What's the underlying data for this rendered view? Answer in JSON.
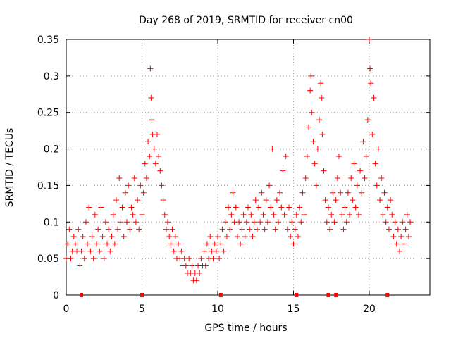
{
  "chart_data": {
    "type": "scatter",
    "title": "Day 268 of 2019, SRMTID for receiver cn00",
    "xlabel": "GPS time / hours",
    "ylabel": "SRMTID / TECUs",
    "xlim": [
      0,
      24
    ],
    "ylim": [
      0,
      0.35
    ],
    "xticks": [
      0,
      5,
      10,
      15,
      20
    ],
    "xtick_labels": [
      "0",
      "5",
      "10",
      "15",
      "20"
    ],
    "yticks": [
      0,
      0.05,
      0.1,
      0.15,
      0.2,
      0.25,
      0.3,
      0.35
    ],
    "ytick_labels": [
      "0",
      "0.05",
      "0.1",
      "0.15",
      "0.2",
      "0.25",
      "0.3",
      "0.35"
    ],
    "grid": true,
    "color": "#ff0000",
    "marker": "plus",
    "series": [
      {
        "name": "SRMTID",
        "points": [
          [
            0.0,
            0.05
          ],
          [
            0.1,
            0.07
          ],
          [
            0.2,
            0.09
          ],
          [
            0.3,
            0.05
          ],
          [
            0.4,
            0.06
          ],
          [
            0.5,
            0.08
          ],
          [
            0.6,
            0.07
          ],
          [
            0.7,
            0.06
          ],
          [
            0.8,
            0.09
          ],
          [
            0.9,
            0.04
          ],
          [
            1.0,
            0.06
          ],
          [
            1.1,
            0.08
          ],
          [
            1.2,
            0.05
          ],
          [
            1.3,
            0.1
          ],
          [
            1.4,
            0.07
          ],
          [
            1.5,
            0.12
          ],
          [
            1.6,
            0.06
          ],
          [
            1.7,
            0.08
          ],
          [
            1.8,
            0.05
          ],
          [
            1.9,
            0.11
          ],
          [
            2.0,
            0.07
          ],
          [
            2.1,
            0.09
          ],
          [
            2.2,
            0.06
          ],
          [
            2.3,
            0.12
          ],
          [
            2.4,
            0.08
          ],
          [
            2.5,
            0.05
          ],
          [
            2.6,
            0.1
          ],
          [
            2.7,
            0.07
          ],
          [
            2.8,
            0.09
          ],
          [
            2.9,
            0.06
          ],
          [
            3.0,
            0.08
          ],
          [
            3.1,
            0.11
          ],
          [
            3.2,
            0.07
          ],
          [
            3.3,
            0.13
          ],
          [
            3.4,
            0.09
          ],
          [
            3.5,
            0.16
          ],
          [
            3.6,
            0.1
          ],
          [
            3.7,
            0.12
          ],
          [
            3.8,
            0.08
          ],
          [
            3.9,
            0.14
          ],
          [
            4.0,
            0.1
          ],
          [
            4.1,
            0.15
          ],
          [
            4.2,
            0.09
          ],
          [
            4.3,
            0.12
          ],
          [
            4.4,
            0.11
          ],
          [
            4.5,
            0.16
          ],
          [
            4.6,
            0.1
          ],
          [
            4.7,
            0.13
          ],
          [
            4.8,
            0.09
          ],
          [
            4.9,
            0.15
          ],
          [
            5.0,
            0.11
          ],
          [
            5.1,
            0.14
          ],
          [
            5.2,
            0.18
          ],
          [
            5.3,
            0.16
          ],
          [
            5.4,
            0.21
          ],
          [
            5.5,
            0.19
          ],
          [
            5.55,
            0.31
          ],
          [
            5.6,
            0.27
          ],
          [
            5.65,
            0.24
          ],
          [
            5.7,
            0.22
          ],
          [
            5.8,
            0.2
          ],
          [
            5.9,
            0.18
          ],
          [
            6.0,
            0.22
          ],
          [
            6.1,
            0.19
          ],
          [
            6.2,
            0.17
          ],
          [
            6.3,
            0.15
          ],
          [
            6.4,
            0.13
          ],
          [
            6.5,
            0.11
          ],
          [
            6.6,
            0.09
          ],
          [
            6.7,
            0.1
          ],
          [
            6.8,
            0.08
          ],
          [
            6.9,
            0.07
          ],
          [
            7.0,
            0.09
          ],
          [
            7.1,
            0.06
          ],
          [
            7.2,
            0.08
          ],
          [
            7.3,
            0.05
          ],
          [
            7.4,
            0.07
          ],
          [
            7.5,
            0.05
          ],
          [
            7.6,
            0.06
          ],
          [
            7.7,
            0.04
          ],
          [
            7.8,
            0.05
          ],
          [
            7.9,
            0.04
          ],
          [
            8.0,
            0.03
          ],
          [
            8.1,
            0.05
          ],
          [
            8.2,
            0.03
          ],
          [
            8.3,
            0.04
          ],
          [
            8.4,
            0.02
          ],
          [
            8.5,
            0.03
          ],
          [
            8.6,
            0.02
          ],
          [
            8.7,
            0.04
          ],
          [
            8.8,
            0.03
          ],
          [
            8.9,
            0.05
          ],
          [
            9.0,
            0.04
          ],
          [
            9.1,
            0.06
          ],
          [
            9.2,
            0.04
          ],
          [
            9.3,
            0.07
          ],
          [
            9.4,
            0.05
          ],
          [
            9.5,
            0.08
          ],
          [
            9.6,
            0.06
          ],
          [
            9.7,
            0.05
          ],
          [
            9.8,
            0.07
          ],
          [
            9.9,
            0.06
          ],
          [
            10.0,
            0.08
          ],
          [
            10.1,
            0.05
          ],
          [
            10.2,
            0.07
          ],
          [
            10.3,
            0.09
          ],
          [
            10.4,
            0.06
          ],
          [
            10.5,
            0.1
          ],
          [
            10.6,
            0.08
          ],
          [
            10.7,
            0.12
          ],
          [
            10.8,
            0.09
          ],
          [
            10.9,
            0.11
          ],
          [
            11.0,
            0.14
          ],
          [
            11.1,
            0.1
          ],
          [
            11.2,
            0.12
          ],
          [
            11.3,
            0.08
          ],
          [
            11.4,
            0.1
          ],
          [
            11.5,
            0.07
          ],
          [
            11.6,
            0.09
          ],
          [
            11.7,
            0.11
          ],
          [
            11.8,
            0.08
          ],
          [
            11.9,
            0.1
          ],
          [
            12.0,
            0.12
          ],
          [
            12.1,
            0.09
          ],
          [
            12.2,
            0.11
          ],
          [
            12.3,
            0.08
          ],
          [
            12.4,
            0.1
          ],
          [
            12.5,
            0.13
          ],
          [
            12.6,
            0.09
          ],
          [
            12.7,
            0.12
          ],
          [
            12.8,
            0.1
          ],
          [
            12.9,
            0.14
          ],
          [
            13.0,
            0.11
          ],
          [
            13.1,
            0.09
          ],
          [
            13.2,
            0.13
          ],
          [
            13.3,
            0.1
          ],
          [
            13.4,
            0.15
          ],
          [
            13.5,
            0.12
          ],
          [
            13.6,
            0.2
          ],
          [
            13.7,
            0.11
          ],
          [
            13.8,
            0.09
          ],
          [
            13.9,
            0.13
          ],
          [
            14.0,
            0.1
          ],
          [
            14.1,
            0.14
          ],
          [
            14.2,
            0.12
          ],
          [
            14.3,
            0.17
          ],
          [
            14.4,
            0.11
          ],
          [
            14.5,
            0.19
          ],
          [
            14.6,
            0.09
          ],
          [
            14.7,
            0.12
          ],
          [
            14.8,
            0.08
          ],
          [
            14.9,
            0.1
          ],
          [
            15.0,
            0.07
          ],
          [
            15.1,
            0.09
          ],
          [
            15.2,
            0.11
          ],
          [
            15.3,
            0.08
          ],
          [
            15.4,
            0.12
          ],
          [
            15.5,
            0.1
          ],
          [
            15.6,
            0.14
          ],
          [
            15.7,
            0.11
          ],
          [
            15.8,
            0.16
          ],
          [
            15.9,
            0.19
          ],
          [
            16.0,
            0.23
          ],
          [
            16.1,
            0.28
          ],
          [
            16.15,
            0.3
          ],
          [
            16.2,
            0.25
          ],
          [
            16.3,
            0.21
          ],
          [
            16.4,
            0.18
          ],
          [
            16.5,
            0.15
          ],
          [
            16.6,
            0.2
          ],
          [
            16.7,
            0.24
          ],
          [
            16.8,
            0.29
          ],
          [
            16.85,
            0.27
          ],
          [
            16.9,
            0.22
          ],
          [
            17.0,
            0.17
          ],
          [
            17.1,
            0.13
          ],
          [
            17.2,
            0.1
          ],
          [
            17.3,
            0.12
          ],
          [
            17.4,
            0.09
          ],
          [
            17.5,
            0.11
          ],
          [
            17.6,
            0.14
          ],
          [
            17.7,
            0.1
          ],
          [
            17.8,
            0.13
          ],
          [
            17.9,
            0.16
          ],
          [
            18.0,
            0.19
          ],
          [
            18.1,
            0.14
          ],
          [
            18.2,
            0.11
          ],
          [
            18.3,
            0.09
          ],
          [
            18.4,
            0.12
          ],
          [
            18.5,
            0.1
          ],
          [
            18.6,
            0.14
          ],
          [
            18.7,
            0.11
          ],
          [
            18.8,
            0.16
          ],
          [
            18.9,
            0.13
          ],
          [
            19.0,
            0.18
          ],
          [
            19.1,
            0.12
          ],
          [
            19.2,
            0.15
          ],
          [
            19.3,
            0.11
          ],
          [
            19.4,
            0.17
          ],
          [
            19.5,
            0.14
          ],
          [
            19.6,
            0.21
          ],
          [
            19.7,
            0.16
          ],
          [
            19.8,
            0.19
          ],
          [
            19.9,
            0.24
          ],
          [
            20.0,
            0.35
          ],
          [
            20.05,
            0.31
          ],
          [
            20.1,
            0.29
          ],
          [
            20.2,
            0.22
          ],
          [
            20.3,
            0.27
          ],
          [
            20.4,
            0.18
          ],
          [
            20.5,
            0.15
          ],
          [
            20.6,
            0.2
          ],
          [
            20.7,
            0.13
          ],
          [
            20.8,
            0.16
          ],
          [
            20.9,
            0.11
          ],
          [
            21.0,
            0.14
          ],
          [
            21.1,
            0.1
          ],
          [
            21.2,
            0.12
          ],
          [
            21.3,
            0.09
          ],
          [
            21.4,
            0.13
          ],
          [
            21.5,
            0.11
          ],
          [
            21.6,
            0.08
          ],
          [
            21.7,
            0.1
          ],
          [
            21.8,
            0.07
          ],
          [
            21.9,
            0.09
          ],
          [
            22.0,
            0.06
          ],
          [
            22.1,
            0.08
          ],
          [
            22.2,
            0.1
          ],
          [
            22.3,
            0.07
          ],
          [
            22.4,
            0.09
          ],
          [
            22.5,
            0.11
          ],
          [
            22.6,
            0.08
          ],
          [
            22.7,
            0.1
          ]
        ]
      },
      {
        "name": "zero-markers",
        "marker": "square",
        "points": [
          [
            1.0,
            0
          ],
          [
            5.0,
            0
          ],
          [
            10.2,
            0
          ],
          [
            15.2,
            0
          ],
          [
            17.3,
            0
          ],
          [
            17.8,
            0
          ],
          [
            21.2,
            0
          ]
        ]
      }
    ]
  }
}
